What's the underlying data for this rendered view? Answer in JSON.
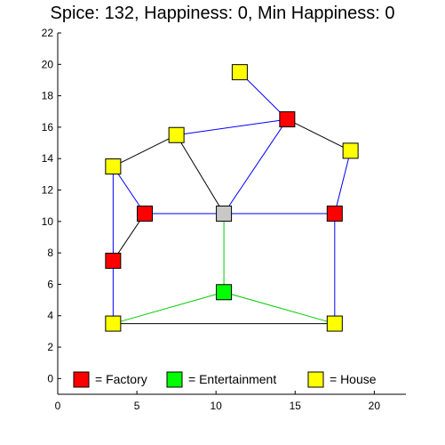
{
  "header": {
    "title": "Spice: 132, Happiness: 0, Min Happiness: 0"
  },
  "legend": [
    {
      "label": "= Factory",
      "color": "#ff0000"
    },
    {
      "label": "= Entertainment",
      "color": "#00ff00"
    },
    {
      "label": "= House",
      "color": "#ffff00"
    }
  ],
  "chart_data": {
    "type": "scatter",
    "title": "Spice: 132, Happiness: 0, Min Happiness: 0",
    "xlim": [
      0,
      22
    ],
    "ylim": [
      -1,
      22
    ],
    "x_ticks": [
      0,
      5,
      10,
      15,
      20
    ],
    "y_ticks": [
      0,
      2,
      4,
      6,
      8,
      10,
      12,
      14,
      16,
      18,
      20,
      22
    ],
    "grid": false,
    "legend_position": "bottom",
    "node_colors": {
      "factory": "#ff0000",
      "entertainment": "#00ff00",
      "house": "#ffff00",
      "hub": "#c8c8c8"
    },
    "nodes": [
      {
        "id": "h1",
        "type": "house",
        "x": 11.5,
        "y": 19.5
      },
      {
        "id": "f1",
        "type": "factory",
        "x": 14.5,
        "y": 16.5
      },
      {
        "id": "h2",
        "type": "house",
        "x": 7.5,
        "y": 15.5
      },
      {
        "id": "h3",
        "type": "house",
        "x": 18.5,
        "y": 14.5
      },
      {
        "id": "h4",
        "type": "house",
        "x": 3.5,
        "y": 13.5
      },
      {
        "id": "f2",
        "type": "factory",
        "x": 5.5,
        "y": 10.5
      },
      {
        "id": "c1",
        "type": "hub",
        "x": 10.5,
        "y": 10.5
      },
      {
        "id": "f3",
        "type": "factory",
        "x": 17.5,
        "y": 10.5
      },
      {
        "id": "f4",
        "type": "factory",
        "x": 3.5,
        "y": 7.5
      },
      {
        "id": "e1",
        "type": "entertainment",
        "x": 10.5,
        "y": 5.5
      },
      {
        "id": "h5",
        "type": "house",
        "x": 3.5,
        "y": 3.5
      },
      {
        "id": "h6",
        "type": "house",
        "x": 17.5,
        "y": 3.5
      }
    ],
    "edges": [
      {
        "from": "h1",
        "to": "f1",
        "color": "#0000ff"
      },
      {
        "from": "h2",
        "to": "f1",
        "color": "#0000ff"
      },
      {
        "from": "f1",
        "to": "h3",
        "color": "#000000"
      },
      {
        "from": "f1",
        "to": "c1",
        "color": "#0000ff"
      },
      {
        "from": "h4",
        "to": "h2",
        "color": "#000000"
      },
      {
        "from": "h2",
        "to": "c1",
        "color": "#000000"
      },
      {
        "from": "h3",
        "to": "f3",
        "color": "#0000ff"
      },
      {
        "from": "h4",
        "to": "f2",
        "color": "#0000ff"
      },
      {
        "from": "h4",
        "to": "h5",
        "color": "#0000ff"
      },
      {
        "from": "f2",
        "to": "c1",
        "color": "#0000ff"
      },
      {
        "from": "c1",
        "to": "f3",
        "color": "#0000ff"
      },
      {
        "from": "f2",
        "to": "f4",
        "color": "#000000"
      },
      {
        "from": "c1",
        "to": "e1",
        "color": "#00cc00"
      },
      {
        "from": "f3",
        "to": "h6",
        "color": "#0000ff"
      },
      {
        "from": "e1",
        "to": "h5",
        "color": "#00cc00"
      },
      {
        "from": "e1",
        "to": "h6",
        "color": "#00cc00"
      },
      {
        "from": "h5",
        "to": "h6",
        "color": "#000000"
      }
    ]
  }
}
